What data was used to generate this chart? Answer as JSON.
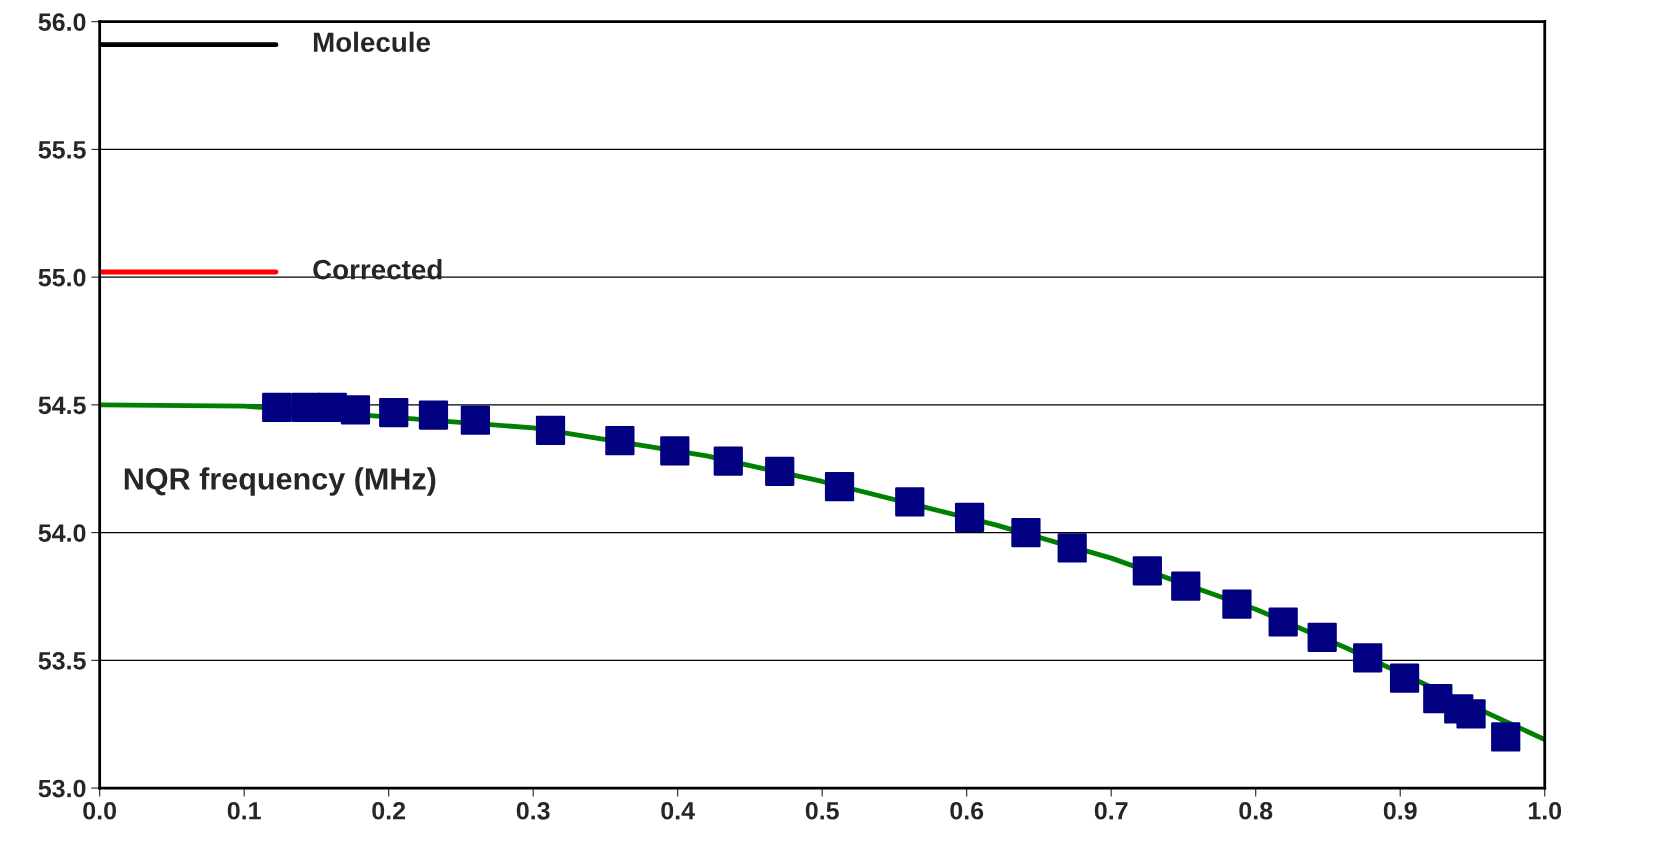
{
  "chart_data": {
    "type": "line",
    "xlim": [
      0,
      1
    ],
    "ylim": [
      53,
      56
    ],
    "xticks": [
      {
        "value": 0,
        "label": "0.0"
      },
      0.1,
      0.2,
      0.3,
      0.4,
      0.5,
      0.6,
      0.7,
      0.8,
      0.9,
      {
        "value": 1,
        "label": "1.0"
      }
    ],
    "yticks": [
      {
        "value": 53,
        "label": "53.0"
      },
      53.5,
      {
        "value": 54,
        "label": "54.0"
      },
      54.5,
      {
        "value": 55,
        "label": "55.0"
      },
      55.5,
      {
        "value": 56,
        "label": "56.0"
      }
    ],
    "grid": "y",
    "legend": false,
    "annotations": [
      "NQR frequency (MHz)"
    ],
    "series": [
      {
        "name": "Molecule",
        "color": "#000000",
        "x": [
          0,
          0.122
        ],
        "values": [
          55.91,
          55.91
        ],
        "marker": "none"
      },
      {
        "name": "Corrected",
        "color": "#ff0000",
        "x": [
          0,
          0.122
        ],
        "values": [
          55.02,
          55.02
        ],
        "marker": "none"
      },
      {
        "color": "#008000",
        "x": [
          0,
          0.1,
          0.3,
          0.42,
          0.5,
          0.62,
          0.7,
          0.8,
          0.862,
          1.0
        ],
        "values": [
          54.5,
          54.495,
          54.41,
          54.3,
          54.2,
          54.03,
          53.9,
          53.7,
          53.55,
          53.19
        ],
        "marker": "none"
      },
      {
        "type": "scatter",
        "color": "#000080",
        "marker": "square",
        "x": [
          0.1225,
          0.1426,
          0.161,
          0.177,
          0.2035,
          0.231,
          0.26,
          0.312,
          0.36,
          0.398,
          0.435,
          0.4706,
          0.512,
          0.5606,
          0.602,
          0.641,
          0.673,
          0.725,
          0.7516,
          0.787,
          0.819,
          0.846,
          0.8775,
          0.903,
          0.926,
          0.9405,
          0.949,
          0.973
        ],
        "values": [
          54.49,
          54.49,
          54.49,
          54.48,
          54.47,
          54.46,
          54.44,
          54.4,
          54.36,
          54.32,
          54.28,
          54.24,
          54.18,
          54.12,
          54.06,
          54.0,
          53.94,
          53.85,
          53.79,
          53.72,
          53.65,
          53.59,
          53.51,
          53.43,
          53.35,
          53.31,
          53.29,
          53.2
        ]
      }
    ]
  }
}
